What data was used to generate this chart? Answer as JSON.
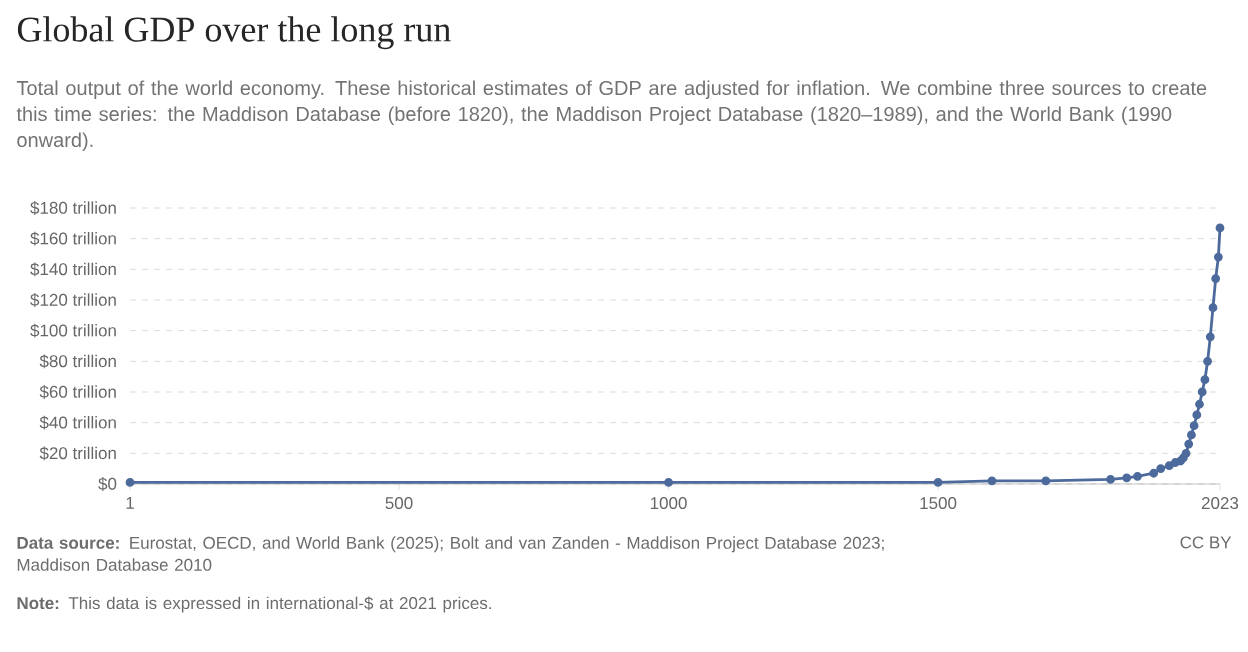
{
  "chart_data": {
    "type": "line",
    "title": "Global GDP over the long run",
    "subtitle": "Total output of the world economy. These historical estimates of GDP are adjusted for inflation. We combine three sources to create this time series: the Maddison Database (before 1820), the Maddison Project Database (1820–1989), and the World Bank (1990 onward).",
    "x": [
      1,
      1000,
      1500,
      1600,
      1700,
      1820,
      1850,
      1870,
      1900,
      1913,
      1929,
      1940,
      1950,
      1955,
      1960,
      1965,
      1970,
      1975,
      1980,
      1985,
      1990,
      1995,
      2000,
      2005,
      2010,
      2015,
      2020,
      2023
    ],
    "series": [
      {
        "color": "#4c6a9c",
        "values": [
          1,
          1,
          1,
          2,
          2,
          3,
          4,
          5,
          7,
          10,
          12,
          14,
          15,
          17,
          20,
          26,
          32,
          38,
          45,
          52,
          60,
          68,
          80,
          96,
          115,
          134,
          148,
          167
        ]
      }
    ],
    "xlim": [
      1,
      2023
    ],
    "xticks": [
      1,
      500,
      1000,
      1500,
      2023
    ],
    "ylim": [
      0,
      180
    ],
    "yticks": [
      {
        "value": 0,
        "label": "$0"
      },
      {
        "value": 20,
        "label": "$20 trillion"
      },
      {
        "value": 40,
        "label": "$40 trillion"
      },
      {
        "value": 60,
        "label": "$60 trillion"
      },
      {
        "value": 80,
        "label": "$80 trillion"
      },
      {
        "value": 100,
        "label": "$100 trillion"
      },
      {
        "value": 120,
        "label": "$120 trillion"
      },
      {
        "value": 140,
        "label": "$140 trillion"
      },
      {
        "value": 160,
        "label": "$160 trillion"
      },
      {
        "value": 180,
        "label": "$180 trillion"
      }
    ],
    "grid": "y",
    "marker": "circle",
    "line_style": "solid",
    "annotations": [
      "**Data source:** Eurostat, OECD, and World Bank (2025); Bolt and van Zanden - Maddison Project Database 2023; Maddison Database 2010",
      "CC BY",
      "**Note:** This data is expressed in international-$ at 2021 prices."
    ]
  }
}
